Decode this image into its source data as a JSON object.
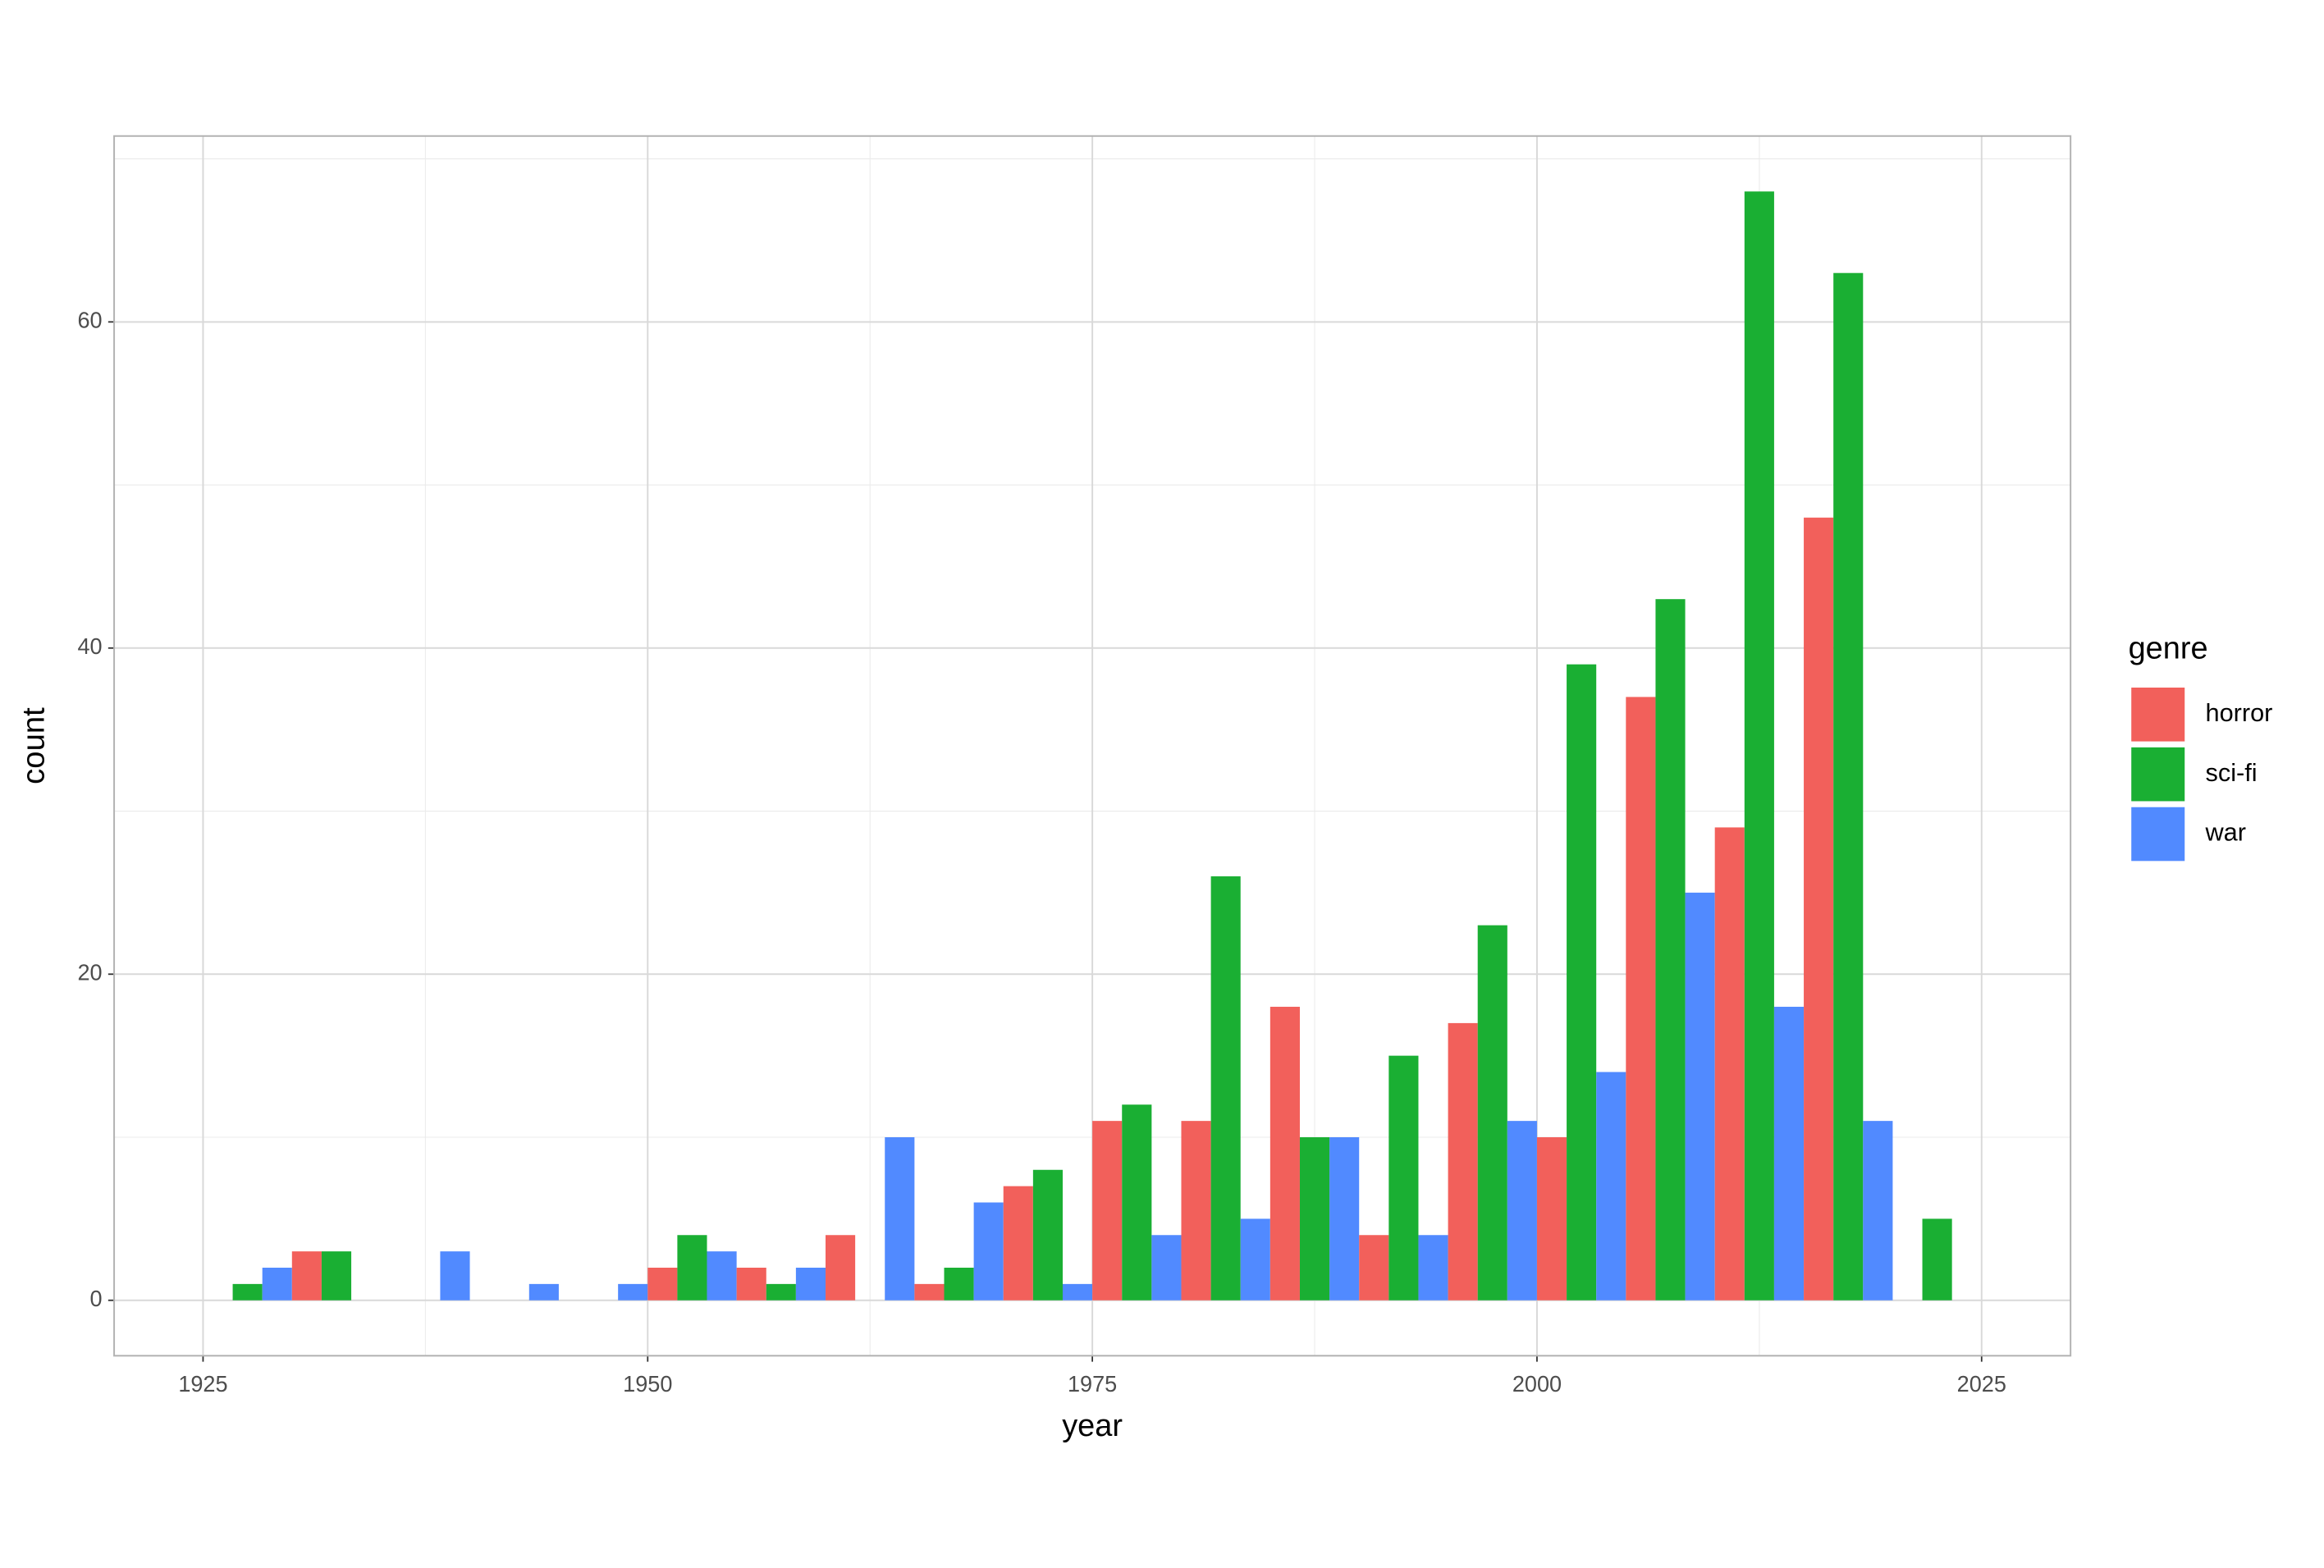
{
  "chart_data": {
    "type": "histogram",
    "x_label": "year",
    "y_label": "count",
    "legend_title": "genre",
    "legend_position": "right",
    "grid": true,
    "bins": [
      1925,
      1930,
      1935,
      1940,
      1945,
      1950,
      1955,
      1960,
      1965,
      1970,
      1975,
      1980,
      1985,
      1990,
      1995,
      2000,
      2005,
      2010,
      2015,
      2020,
      2025
    ],
    "series": [
      {
        "name": "horror",
        "color": "#F2605B",
        "values": [
          0,
          3,
          0,
          0,
          0,
          2,
          2,
          4,
          1,
          7,
          11,
          11,
          18,
          4,
          17,
          10,
          37,
          29,
          48,
          0
        ]
      },
      {
        "name": "sci-fi",
        "color": "#1AAF33",
        "values": [
          1,
          3,
          0,
          0,
          0,
          4,
          1,
          0,
          2,
          8,
          12,
          26,
          10,
          15,
          23,
          39,
          43,
          68,
          63,
          5
        ]
      },
      {
        "name": "war",
        "color": "#518AFF",
        "values": [
          2,
          0,
          3,
          1,
          1,
          3,
          2,
          10,
          6,
          1,
          4,
          5,
          10,
          4,
          11,
          14,
          25,
          18,
          11,
          0
        ]
      }
    ],
    "xlim": [
      1920,
      2030
    ],
    "ylim": [
      -3.4,
      71.4
    ],
    "xticks": [
      1925,
      1950,
      1975,
      2000,
      2025
    ],
    "yticks": [
      0,
      20,
      40,
      60
    ],
    "xminor": [
      1937.5,
      1962.5,
      1987.5,
      2012.5
    ],
    "yminor": [
      10,
      30,
      50,
      70
    ]
  }
}
